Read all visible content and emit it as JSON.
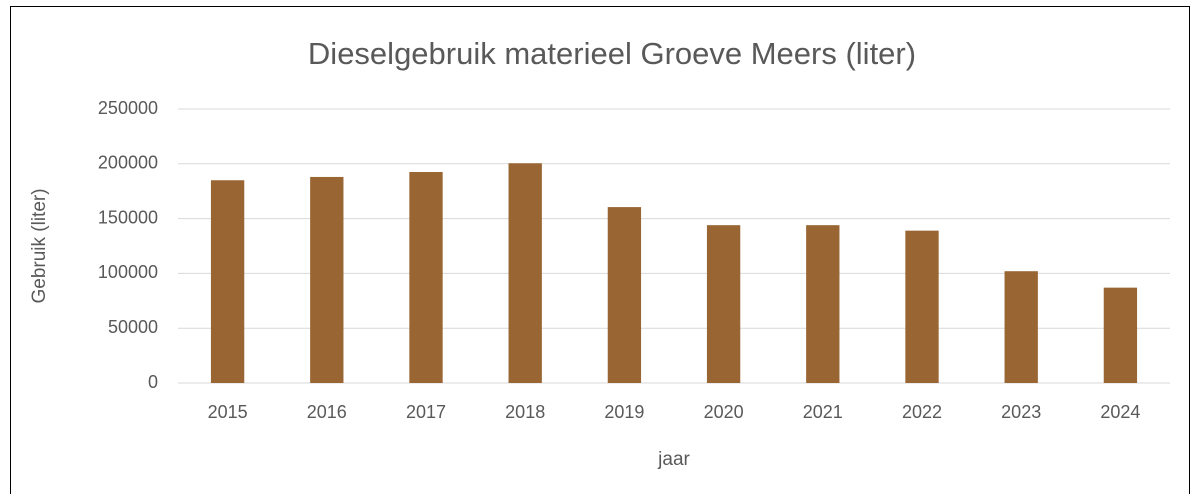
{
  "chart_data": {
    "type": "bar",
    "title": "Dieselgebruik materieel Groeve Meers (liter)",
    "categories": [
      "2015",
      "2016",
      "2017",
      "2018",
      "2019",
      "2020",
      "2021",
      "2022",
      "2023",
      "2024"
    ],
    "values": [
      185000,
      188000,
      192500,
      200500,
      160500,
      144000,
      144000,
      139000,
      102000,
      87000
    ],
    "color": "#996633",
    "ylim": [
      0,
      250000
    ],
    "yticks": [
      0,
      50000,
      100000,
      150000,
      200000,
      250000
    ],
    "grid": true,
    "xlabel": "jaar",
    "ylabel": "Gebruik (liter)"
  }
}
